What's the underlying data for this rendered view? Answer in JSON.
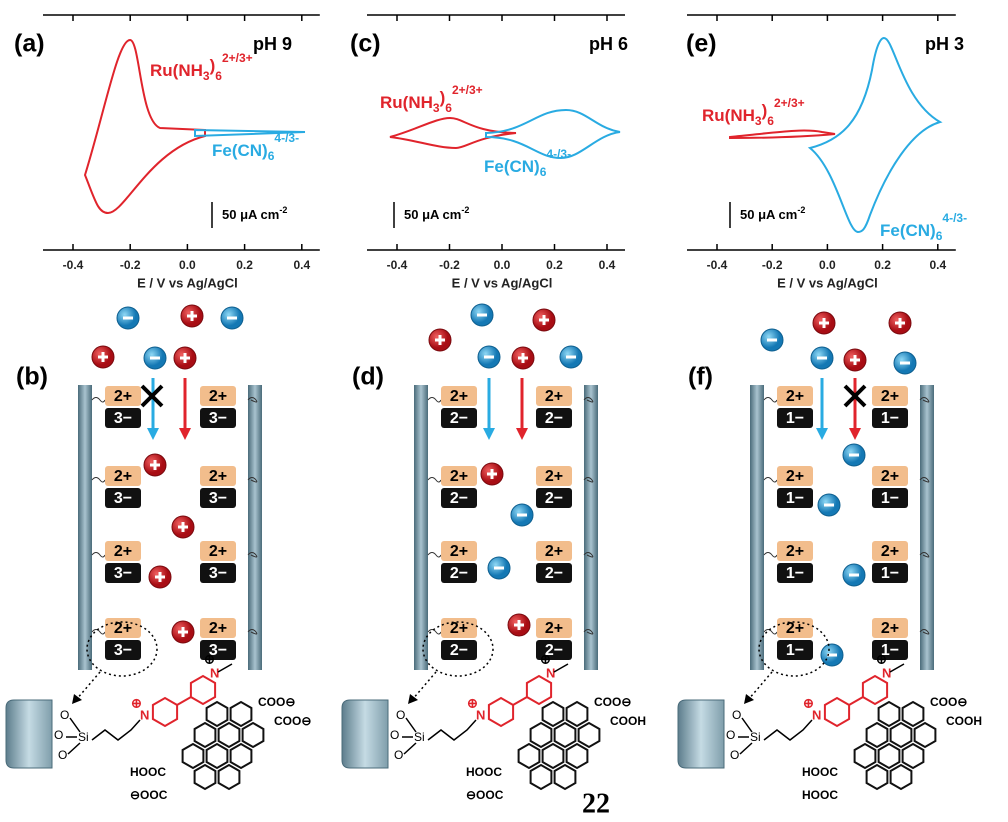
{
  "species": {
    "ru": {
      "main": "Ru(NH",
      "sub1": "3",
      "close": ")",
      "sub2": "6",
      "sup": "2+/3+"
    },
    "fe": {
      "main": "Fe(CN)",
      "sub": "6",
      "sup": "4-/3-"
    }
  },
  "molecule_atoms": {
    "o": "O",
    "si": "Si",
    "n": "N",
    "plus": "⊕"
  },
  "panels": [
    {
      "cv": {
        "label": "(a)",
        "title": "pH 9",
        "xticks": [
          -0.4,
          -0.2,
          {
            "value": 0,
            "label": "0.0"
          },
          0.2,
          0.4
        ],
        "xlabel": "E / V vs Ag/AgCl",
        "scale_bar": "50 μA cm",
        "scale_bar_sup": "-2"
      },
      "diagram": {
        "label": "(b)",
        "upper_charge": "2+",
        "lower_charge": "3−",
        "molecule": {
          "right_top": "COO⊖",
          "right_bottom": "COO⊖",
          "left_top": "HOOC",
          "left_bottom": "⊖OOC"
        }
      }
    },
    {
      "cv": {
        "label": "(c)",
        "title": "pH 6",
        "xticks": [
          -0.4,
          -0.2,
          {
            "value": 0,
            "label": "0.0"
          },
          0.2,
          0.4
        ],
        "xlabel": "E / V vs Ag/AgCl",
        "scale_bar": "50 μA cm",
        "scale_bar_sup": "-2"
      },
      "diagram": {
        "label": "(d)",
        "upper_charge": "2+",
        "lower_charge": "2−",
        "molecule": {
          "right_top": "COO⊖",
          "right_bottom": "COOH",
          "left_top": "HOOC",
          "left_bottom": "⊖OOC"
        }
      }
    },
    {
      "cv": {
        "label": "(e)",
        "title": "pH 3",
        "xticks": [
          -0.4,
          -0.2,
          {
            "value": 0,
            "label": "0.0"
          },
          0.2,
          0.4
        ],
        "xlabel": "E / V vs Ag/AgCl",
        "scale_bar": "50 μA cm",
        "scale_bar_sup": "-2"
      },
      "diagram": {
        "label": "(f)",
        "upper_charge": "2+",
        "lower_charge": "1−",
        "molecule": {
          "right_top": "COO⊖",
          "right_bottom": "COOH",
          "left_top": "HOOC",
          "left_bottom": "HOOC"
        }
      }
    }
  ],
  "page_number": "22"
}
